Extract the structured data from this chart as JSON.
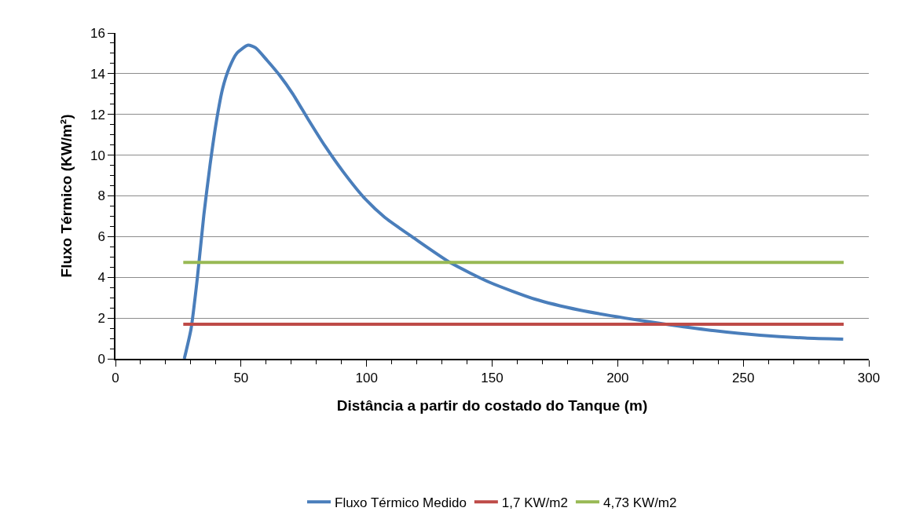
{
  "chart_data": {
    "type": "line",
    "xlabel": "Distância a partir do costado do Tanque (m)",
    "ylabel": "Fluxo Térmico (KW/m²)",
    "xlim": [
      0,
      300
    ],
    "xticks": [
      0,
      50,
      100,
      150,
      200,
      250,
      300
    ],
    "ylim": [
      0,
      16
    ],
    "yticks": [
      0,
      2,
      4,
      6,
      8,
      10,
      12,
      14,
      16
    ],
    "grid": "y",
    "legend": "bottom",
    "marker": "none",
    "line_style": "solid",
    "series": [
      {
        "name": "Fluxo Térmico Medido",
        "color": "#4a7ebb",
        "x": [
          27.4,
          30.1,
          32.6,
          35.2,
          37.7,
          40.2,
          42.7,
          45.3,
          48.3,
          52.8,
          55.8,
          60.4,
          65.5,
          70.5,
          76.6,
          83.6,
          90.7,
          98.8,
          107.2,
          119.2,
          133.5,
          149.1,
          167,
          184.9,
          202.9,
          220.8,
          238.7,
          256.7,
          274.6,
          289.8
        ],
        "values": [
          0,
          1.47,
          3.96,
          7.07,
          9.55,
          11.67,
          13.28,
          14.28,
          15.0,
          15.4,
          15.27,
          14.65,
          13.9,
          13.03,
          11.79,
          10.42,
          9.18,
          7.94,
          6.95,
          5.9,
          4.71,
          3.75,
          2.93,
          2.39,
          2.0,
          1.67,
          1.38,
          1.16,
          1.02,
          0.96
        ]
      },
      {
        "name": "1,7 KW/m2",
        "color": "#be4b48",
        "x": [
          27,
          290
        ],
        "values": [
          1.7,
          1.7
        ]
      },
      {
        "name": "4,73 KW/m2",
        "color": "#98b954",
        "x": [
          27,
          290
        ],
        "values": [
          4.73,
          4.73
        ]
      }
    ]
  }
}
